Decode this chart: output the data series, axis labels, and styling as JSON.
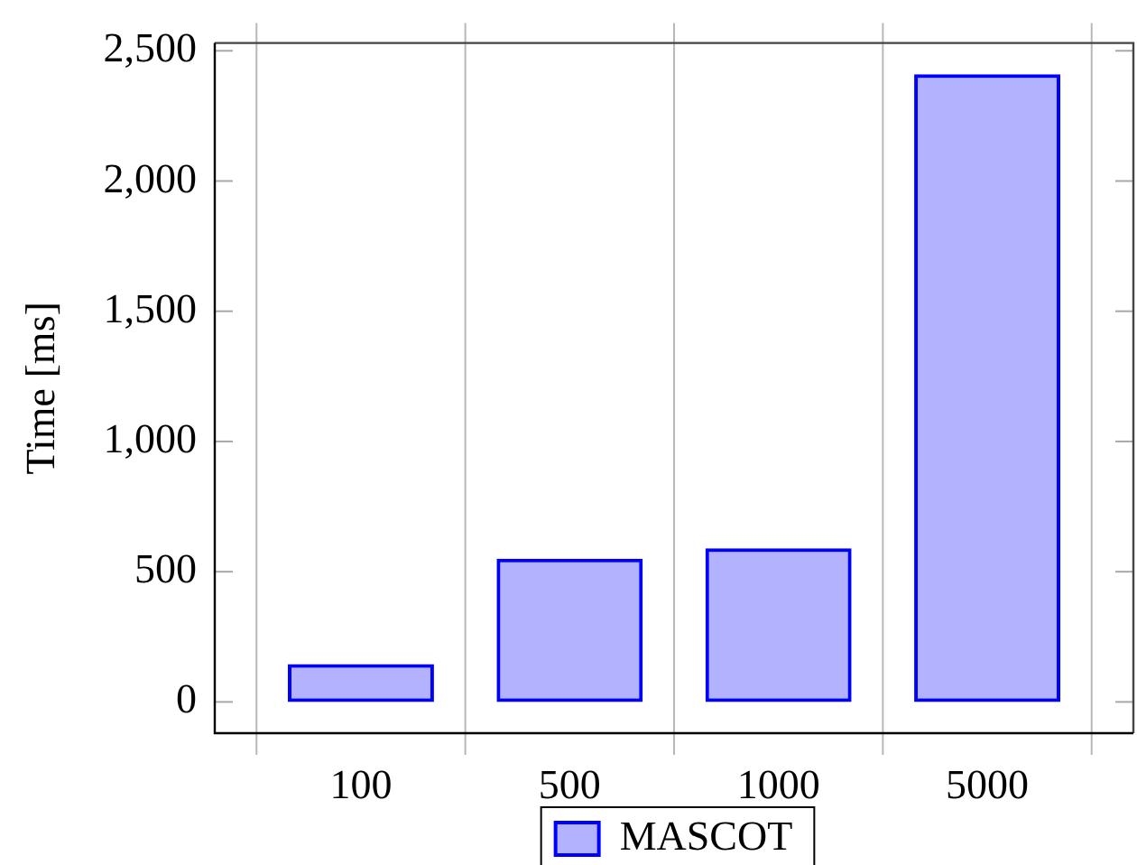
{
  "chart_data": {
    "type": "bar",
    "categories": [
      "100",
      "500",
      "1000",
      "5000"
    ],
    "series": [
      {
        "name": "MASCOT",
        "color": "#0000ff",
        "values": [
          145,
          550,
          590,
          2410
        ]
      }
    ],
    "ylabel": "Time [ms]",
    "ylim": [
      -120,
      2530
    ],
    "yticks": [
      0,
      500,
      {
        "value": 1000,
        "label": "1,000"
      },
      {
        "value": 1500,
        "label": "1,500"
      },
      {
        "value": 2000,
        "label": "2,000"
      },
      {
        "value": 2500,
        "label": "2,500"
      }
    ],
    "grid": "x",
    "legend": "bottom"
  }
}
